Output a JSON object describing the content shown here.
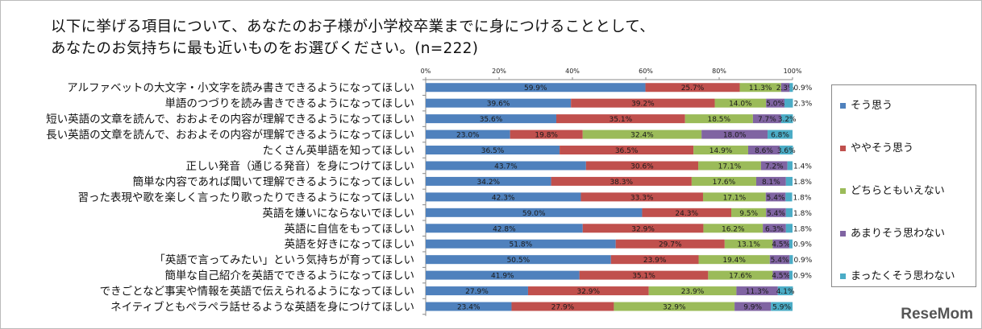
{
  "title_lines": [
    "以下に挙げる項目について、あなたのお子様が小学校卒業までに身につけることとして、",
    "あなたのお気持ちに最も近いものをお選びください。(n=222)"
  ],
  "logo": "ReseMom",
  "chart_data": {
    "type": "bar",
    "orientation": "horizontal-stacked-100",
    "title": "以下に挙げる項目について、あなたのお子様が小学校卒業までに身につけることとして、あなたのお気持ちに最も近いものをお選びください。(n=222)",
    "xlim": [
      0,
      100
    ],
    "xticks": [
      "0%",
      "20%",
      "40%",
      "60%",
      "80%",
      "100%"
    ],
    "legend_position": "right",
    "categories": [
      "アルファベットの大文字・小文字を読み書きできるようになってほしい",
      "単語のつづりを読み書きできるようになってほしい",
      "短い英語の文章を読んで、おおよその内容が理解できるようになってほしい",
      "長い英語の文章を読んで、おおよその内容が理解できるようになってほしい",
      "たくさん英単語を知ってほしい",
      "正しい発音（通じる発音）を身につけてほしい",
      "簡単な内容であれば聞いて理解できるようになってほしい",
      "習った表現や歌を楽しく言ったり歌ったりできるようになってほしい",
      "英語を嫌いにならないでほしい",
      "英語に自信をもってほしい",
      "英語を好きになってほしい",
      "「英語で言ってみたい」という気持ちが育ってほしい",
      "簡単な自己紹介を英語でできるようになってほしい",
      "できごとなど事実や情報を英語で伝えられるようになってほしい",
      "ネイティブともペラペラ話せるような英語を身につけてほしい"
    ],
    "series": [
      {
        "name": "そう思う",
        "color": "#4f81bd",
        "values": [
          59.9,
          39.6,
          35.6,
          23.0,
          36.5,
          43.7,
          34.2,
          42.3,
          59.0,
          42.8,
          51.8,
          50.5,
          41.9,
          27.9,
          23.4
        ]
      },
      {
        "name": "ややそう思う",
        "color": "#c0504d",
        "values": [
          25.7,
          39.2,
          35.1,
          19.8,
          36.5,
          30.6,
          38.3,
          33.3,
          24.3,
          32.9,
          29.7,
          23.9,
          35.1,
          32.9,
          27.9
        ]
      },
      {
        "name": "どちらともいえない",
        "color": "#9bbb59",
        "values": [
          11.3,
          14.0,
          18.5,
          32.4,
          14.9,
          17.1,
          17.6,
          17.1,
          9.5,
          16.2,
          13.1,
          19.4,
          17.6,
          23.9,
          32.9
        ]
      },
      {
        "name": "あまりそう思わない",
        "color": "#8064a2",
        "values": [
          2.3,
          5.0,
          7.7,
          18.0,
          8.6,
          7.2,
          8.1,
          5.4,
          5.4,
          6.3,
          4.5,
          5.4,
          4.5,
          11.3,
          9.9
        ]
      },
      {
        "name": "まったくそう思わない",
        "color": "#4bacc6",
        "values": [
          0.9,
          2.3,
          3.2,
          6.8,
          3.6,
          1.4,
          1.8,
          1.8,
          1.8,
          1.8,
          0.9,
          0.9,
          0.9,
          4.1,
          5.9
        ]
      }
    ]
  }
}
